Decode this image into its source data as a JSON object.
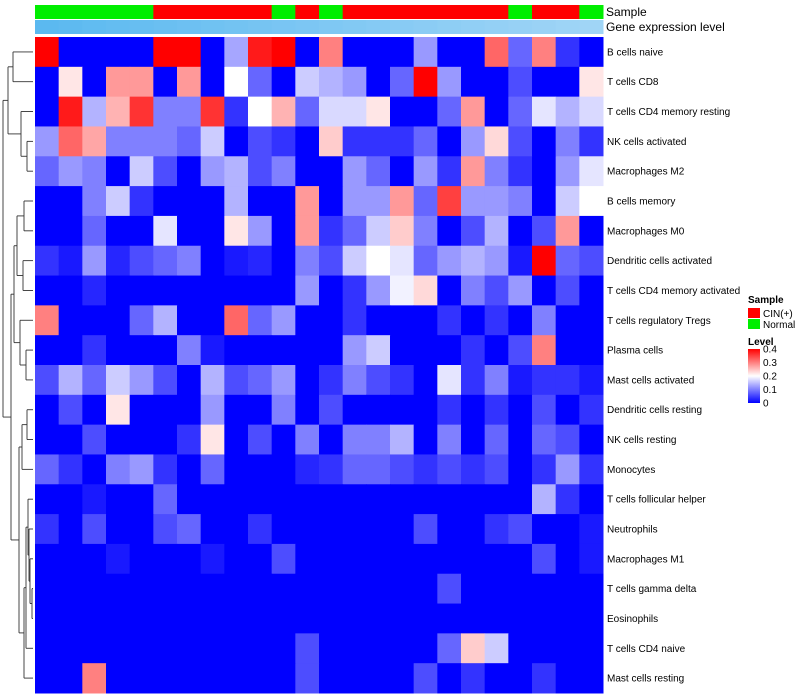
{
  "chart_data": {
    "type": "heatmap",
    "title": "",
    "annotation_labels": [
      "Sample",
      "Gene expression level"
    ],
    "legend_sample_title": "Sample",
    "legend_groups": [
      {
        "name": "CIN(+)",
        "color": "#ff0000"
      },
      {
        "name": "Normal",
        "color": "#00ee00"
      }
    ],
    "legend_level_title": "Level",
    "level_ticks": [
      "0.4",
      "0.3",
      "0.2",
      "0.1",
      "0"
    ],
    "level_range": [
      0,
      0.4
    ],
    "color_scale": {
      "low": "#0000ff",
      "mid": "#ffffff",
      "high": "#ff0000"
    },
    "sample_groups": [
      "Normal",
      "Normal",
      "Normal",
      "Normal",
      "Normal",
      "CIN(+)",
      "CIN(+)",
      "CIN(+)",
      "CIN(+)",
      "CIN(+)",
      "Normal",
      "CIN(+)",
      "Normal",
      "CIN(+)",
      "CIN(+)",
      "CIN(+)",
      "CIN(+)",
      "CIN(+)",
      "CIN(+)",
      "CIN(+)",
      "Normal",
      "CIN(+)",
      "CIN(+)",
      "Normal"
    ],
    "expression_level": [
      0.98,
      0.96,
      0.94,
      0.92,
      0.9,
      0.88,
      0.86,
      0.84,
      0.82,
      0.8,
      0.78,
      0.76,
      0.74,
      0.72,
      0.7,
      0.68,
      0.66,
      0.64,
      0.62,
      0.6,
      0.58,
      0.56,
      0.54,
      0.52
    ],
    "rows": [
      "B cells naive",
      "T cells CD8",
      "T cells CD4 memory resting",
      "NK cells activated",
      "Macrophages M2",
      "B cells memory",
      "Macrophages M0",
      "Dendritic cells activated",
      "T cells CD4 memory activated",
      "T cells regulatory  Tregs",
      "Plasma cells",
      "Mast cells activated",
      "Dendritic cells resting",
      "NK cells resting",
      "Monocytes",
      "T cells follicular helper",
      "Neutrophils",
      "Macrophages M1",
      "T cells gamma delta",
      "Eosinophils",
      "T cells CD4 naive",
      "Mast cells resting"
    ],
    "values": [
      [
        0.4,
        0.0,
        0.0,
        0.0,
        0.0,
        0.4,
        0.4,
        0.0,
        0.13,
        0.38,
        0.4,
        0.0,
        0.3,
        0.0,
        0.0,
        0.0,
        0.12,
        0.0,
        0.0,
        0.32,
        0.08,
        0.3,
        0.04,
        0.0
      ],
      [
        0.0,
        0.22,
        0.0,
        0.28,
        0.28,
        0.0,
        0.28,
        0.0,
        0.2,
        0.08,
        0.0,
        0.16,
        0.14,
        0.12,
        0.0,
        0.08,
        0.4,
        0.12,
        0.0,
        0.0,
        0.06,
        0.0,
        0.0,
        0.22
      ],
      [
        0.0,
        0.38,
        0.14,
        0.26,
        0.36,
        0.1,
        0.1,
        0.36,
        0.04,
        0.2,
        0.26,
        0.08,
        0.17,
        0.17,
        0.22,
        0.0,
        0.0,
        0.08,
        0.28,
        0.0,
        0.08,
        0.18,
        0.14,
        0.17
      ],
      [
        0.12,
        0.32,
        0.27,
        0.1,
        0.1,
        0.1,
        0.08,
        0.16,
        0.0,
        0.06,
        0.04,
        0.0,
        0.24,
        0.04,
        0.04,
        0.04,
        0.08,
        0.0,
        0.12,
        0.23,
        0.06,
        0.0,
        0.1,
        0.04
      ],
      [
        0.08,
        0.12,
        0.1,
        0.0,
        0.16,
        0.06,
        0.0,
        0.12,
        0.14,
        0.06,
        0.1,
        0.0,
        0.0,
        0.12,
        0.08,
        0.0,
        0.12,
        0.04,
        0.28,
        0.1,
        0.04,
        0.0,
        0.12,
        0.18
      ],
      [
        0.0,
        0.0,
        0.1,
        0.16,
        0.04,
        0.0,
        0.0,
        0.0,
        0.14,
        0.0,
        0.0,
        0.28,
        0.0,
        0.12,
        0.12,
        0.28,
        0.08,
        0.35,
        0.12,
        0.12,
        0.1,
        0.0,
        0.16,
        0.2
      ],
      [
        0.0,
        0.0,
        0.08,
        0.0,
        0.0,
        0.18,
        0.0,
        0.0,
        0.22,
        0.12,
        0.0,
        0.28,
        0.04,
        0.08,
        0.16,
        0.24,
        0.1,
        0.0,
        0.06,
        0.14,
        0.0,
        0.06,
        0.28,
        0.0
      ],
      [
        0.04,
        0.02,
        0.12,
        0.03,
        0.06,
        0.08,
        0.1,
        0.0,
        0.02,
        0.03,
        0.0,
        0.1,
        0.06,
        0.16,
        0.2,
        0.18,
        0.08,
        0.12,
        0.14,
        0.12,
        0.02,
        0.4,
        0.08,
        0.06
      ],
      [
        0.0,
        0.0,
        0.03,
        0.0,
        0.0,
        0.0,
        0.0,
        0.0,
        0.0,
        0.0,
        0.0,
        0.12,
        0.0,
        0.04,
        0.12,
        0.19,
        0.23,
        0.0,
        0.1,
        0.06,
        0.12,
        0.0,
        0.06,
        0.0
      ],
      [
        0.3,
        0.0,
        0.0,
        0.0,
        0.08,
        0.14,
        0.0,
        0.0,
        0.32,
        0.08,
        0.12,
        0.0,
        0.0,
        0.04,
        0.0,
        0.0,
        0.0,
        0.04,
        0.0,
        0.04,
        0.0,
        0.1,
        0.0,
        0.0
      ],
      [
        0.0,
        0.0,
        0.04,
        0.0,
        0.0,
        0.0,
        0.1,
        0.02,
        0.0,
        0.0,
        0.0,
        0.0,
        0.0,
        0.12,
        0.16,
        0.0,
        0.0,
        0.0,
        0.04,
        0.0,
        0.06,
        0.3,
        0.0,
        0.0
      ],
      [
        0.06,
        0.14,
        0.08,
        0.16,
        0.12,
        0.06,
        0.0,
        0.14,
        0.06,
        0.08,
        0.12,
        0.0,
        0.04,
        0.1,
        0.06,
        0.04,
        0.0,
        0.18,
        0.04,
        0.1,
        0.02,
        0.04,
        0.04,
        0.02
      ],
      [
        0.0,
        0.06,
        0.0,
        0.22,
        0.0,
        0.0,
        0.0,
        0.12,
        0.0,
        0.0,
        0.1,
        0.0,
        0.06,
        0.0,
        0.0,
        0.0,
        0.0,
        0.04,
        0.0,
        0.04,
        0.0,
        0.06,
        0.0,
        0.04
      ],
      [
        0.0,
        0.0,
        0.06,
        0.0,
        0.0,
        0.0,
        0.04,
        0.22,
        0.0,
        0.06,
        0.0,
        0.1,
        0.0,
        0.1,
        0.1,
        0.14,
        0.0,
        0.1,
        0.0,
        0.08,
        0.0,
        0.08,
        0.06,
        0.0
      ],
      [
        0.08,
        0.04,
        0.0,
        0.1,
        0.12,
        0.04,
        0.0,
        0.08,
        0.0,
        0.0,
        0.0,
        0.03,
        0.04,
        0.08,
        0.08,
        0.06,
        0.04,
        0.06,
        0.04,
        0.06,
        0.0,
        0.04,
        0.12,
        0.04
      ],
      [
        0.0,
        0.0,
        0.02,
        0.0,
        0.0,
        0.08,
        0.0,
        0.0,
        0.0,
        0.0,
        0.0,
        0.0,
        0.0,
        0.0,
        0.0,
        0.0,
        0.0,
        0.0,
        0.0,
        0.0,
        0.0,
        0.14,
        0.04,
        0.0
      ],
      [
        0.04,
        0.0,
        0.06,
        0.0,
        0.0,
        0.06,
        0.08,
        0.0,
        0.0,
        0.04,
        0.0,
        0.0,
        0.0,
        0.0,
        0.0,
        0.0,
        0.06,
        0.0,
        0.0,
        0.04,
        0.06,
        0.0,
        0.0,
        0.02
      ],
      [
        0.0,
        0.0,
        0.0,
        0.02,
        0.0,
        0.0,
        0.0,
        0.02,
        0.0,
        0.0,
        0.06,
        0.0,
        0.0,
        0.0,
        0.0,
        0.0,
        0.0,
        0.0,
        0.0,
        0.0,
        0.0,
        0.06,
        0.0,
        0.02
      ],
      [
        0.0,
        0.0,
        0.0,
        0.0,
        0.0,
        0.0,
        0.0,
        0.0,
        0.0,
        0.0,
        0.0,
        0.0,
        0.0,
        0.0,
        0.0,
        0.0,
        0.0,
        0.06,
        0.0,
        0.0,
        0.0,
        0.0,
        0.0,
        0.0
      ],
      [
        0.0,
        0.0,
        0.0,
        0.0,
        0.0,
        0.0,
        0.0,
        0.0,
        0.0,
        0.0,
        0.0,
        0.0,
        0.0,
        0.0,
        0.0,
        0.0,
        0.0,
        0.0,
        0.0,
        0.0,
        0.0,
        0.0,
        0.0,
        0.0
      ],
      [
        0.0,
        0.0,
        0.0,
        0.0,
        0.0,
        0.0,
        0.0,
        0.0,
        0.0,
        0.0,
        0.0,
        0.06,
        0.0,
        0.0,
        0.0,
        0.0,
        0.0,
        0.08,
        0.24,
        0.16,
        0.0,
        0.0,
        0.0,
        0.0
      ],
      [
        0.0,
        0.0,
        0.3,
        0.0,
        0.0,
        0.0,
        0.0,
        0.0,
        0.0,
        0.0,
        0.0,
        0.06,
        0.0,
        0.0,
        0.0,
        0.0,
        0.06,
        0.0,
        0.04,
        0.0,
        0.0,
        0.04,
        0.0,
        0.0
      ]
    ]
  }
}
